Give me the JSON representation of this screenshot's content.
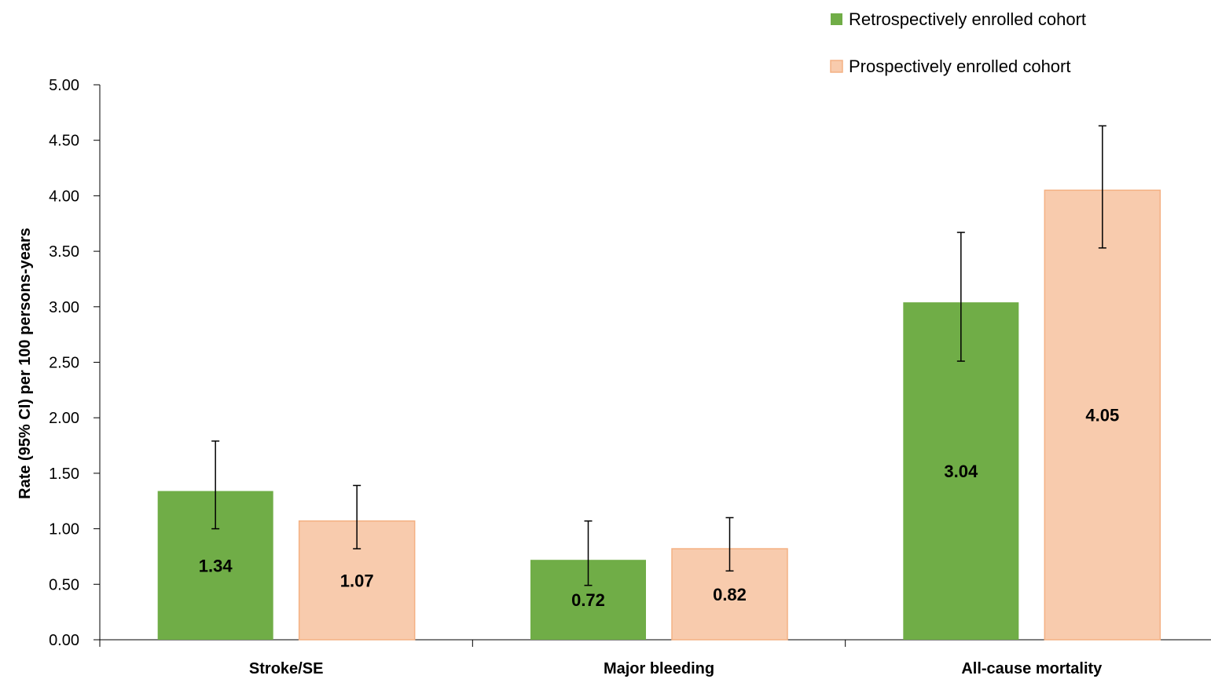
{
  "chart_data": {
    "type": "bar",
    "categories": [
      "Stroke/SE",
      "Major bleeding",
      "All-cause mortality"
    ],
    "series": [
      {
        "name": "Retrospectively enrolled cohort",
        "color": "#70ad47",
        "values": [
          1.34,
          0.72,
          3.04
        ],
        "ci_low": [
          1.0,
          0.49,
          2.51
        ],
        "ci_high": [
          1.79,
          1.07,
          3.67
        ],
        "labels": [
          "1.34",
          "0.72",
          "3.04"
        ]
      },
      {
        "name": "Prospectively enrolled cohort",
        "color": "#f8cbad",
        "border": "#f4b183",
        "values": [
          1.07,
          0.82,
          4.05
        ],
        "ci_low": [
          0.82,
          0.62,
          3.53
        ],
        "ci_high": [
          1.39,
          1.1,
          4.63
        ],
        "labels": [
          "1.07",
          "0.82",
          "4.05"
        ]
      }
    ],
    "ylabel": "Rate (95% CI)  per 100 persons-years",
    "ylim": [
      0,
      5
    ],
    "yticks": [
      "0.00",
      "0.50",
      "1.00",
      "1.50",
      "2.00",
      "2.50",
      "3.00",
      "3.50",
      "4.00",
      "4.50",
      "5.00"
    ],
    "ytick_values": [
      0,
      0.5,
      1,
      1.5,
      2,
      2.5,
      3,
      3.5,
      4,
      4.5,
      5
    ],
    "legend_position": "top-right",
    "grid": false
  }
}
